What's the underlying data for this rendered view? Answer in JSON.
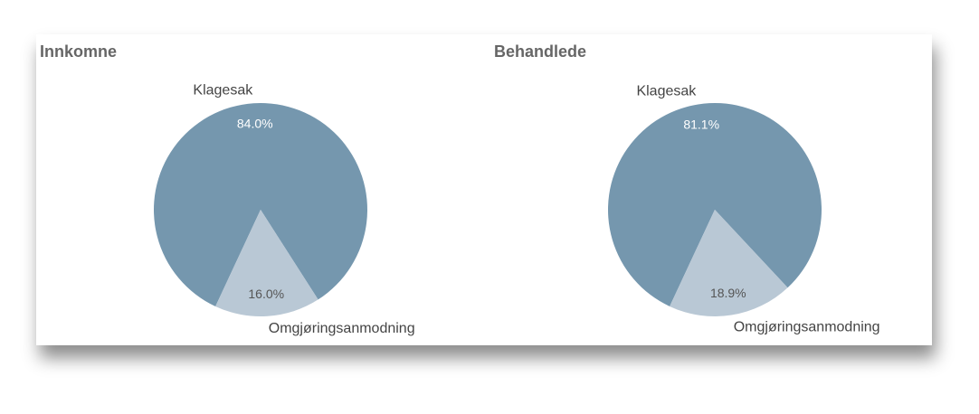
{
  "chart_data": [
    {
      "type": "pie",
      "title": "Innkomne",
      "categories": [
        "Klagesak",
        "Omgjøringsanmodning"
      ],
      "values": [
        84.0,
        16.0
      ],
      "value_labels": [
        "84.0%",
        "16.0%"
      ],
      "colors": [
        "#7597ae",
        "#b9c8d5"
      ]
    },
    {
      "type": "pie",
      "title": "Behandlede",
      "categories": [
        "Klagesak",
        "Omgjøringsanmodning"
      ],
      "values": [
        81.1,
        18.9
      ],
      "value_labels": [
        "81.1%",
        "18.9%"
      ],
      "colors": [
        "#7597ae",
        "#b9c8d5"
      ]
    }
  ]
}
